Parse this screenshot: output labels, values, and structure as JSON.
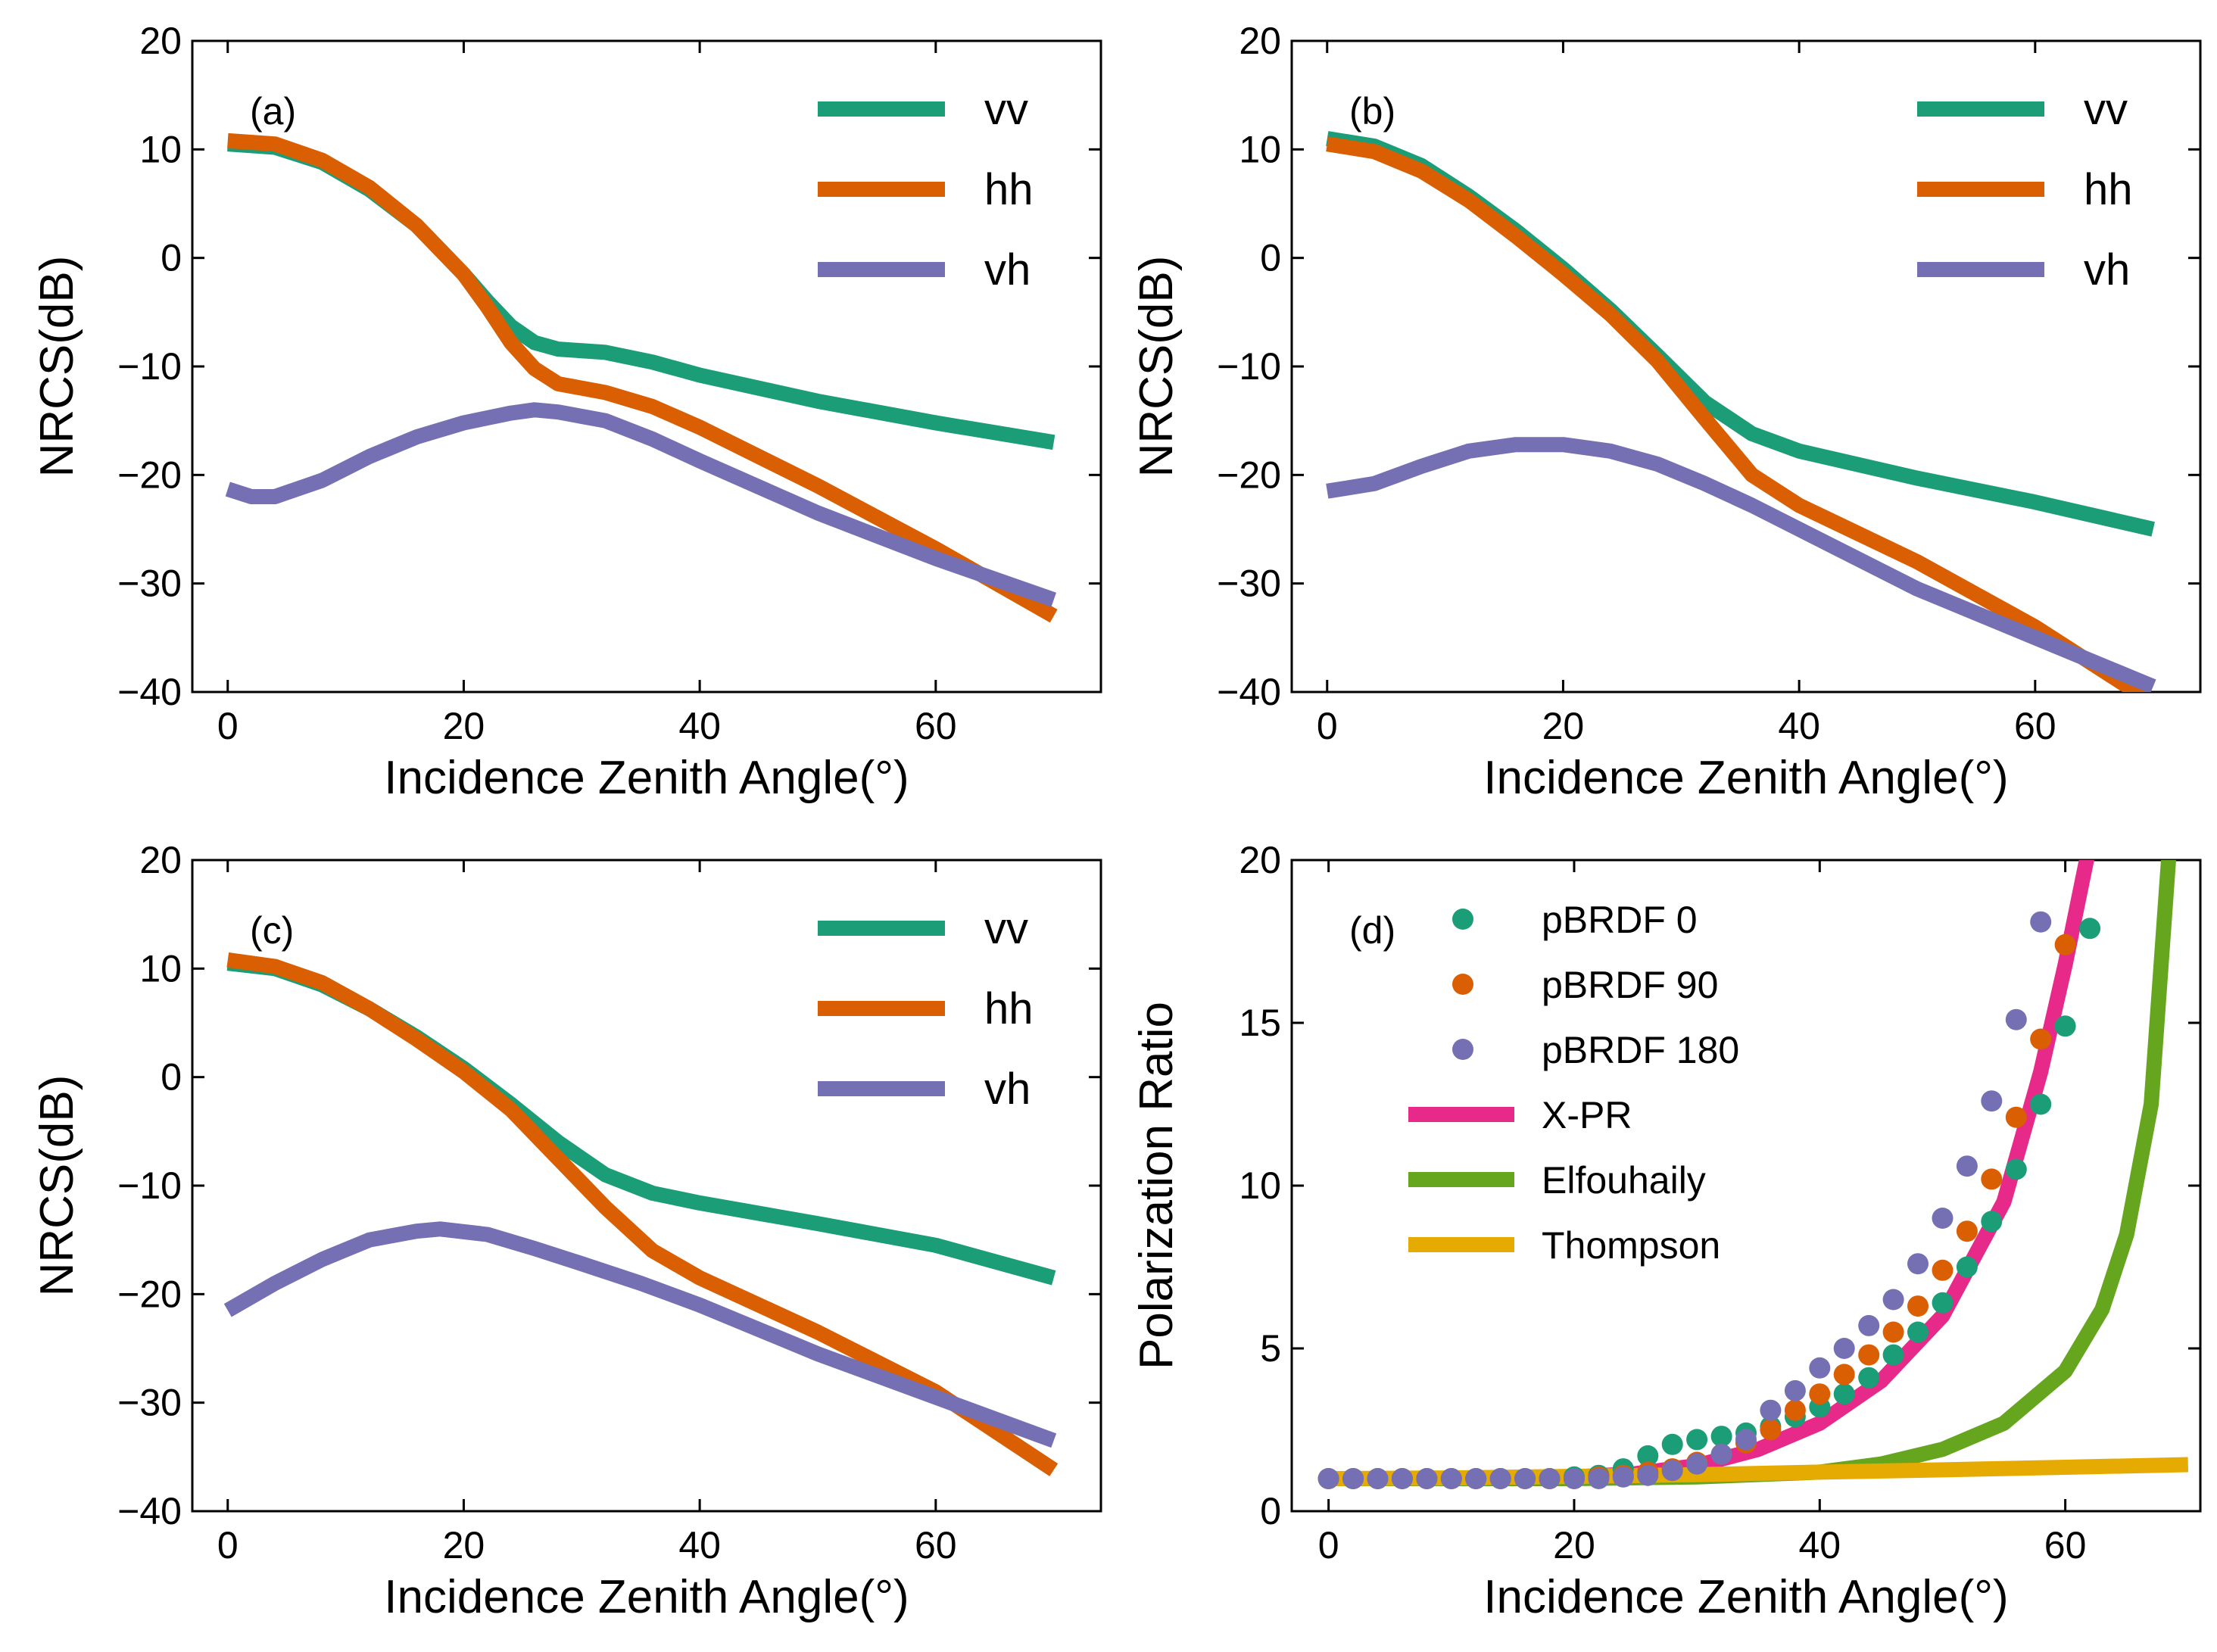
{
  "figure": {
    "colors": {
      "vv": "#1b9e77",
      "hh": "#d95f02",
      "vh": "#7570b3",
      "pbrdf0": "#1b9e77",
      "pbrdf90": "#d95f02",
      "pbrdf180": "#7570b3",
      "xpr": "#e7298a",
      "elfouhaily": "#66a61e",
      "thompson": "#e6ab02"
    }
  },
  "chart_data": [
    {
      "id": "a",
      "type": "line",
      "panel_label": "(a)",
      "xlabel": "Incidence Zenith Angle(°)",
      "ylabel": "NRCS(dB)",
      "xlim": [
        -3,
        74
      ],
      "ylim": [
        -40,
        20
      ],
      "xticks": [
        "0",
        "20",
        "40",
        "60"
      ],
      "xtick_values": [
        0,
        20,
        40,
        60
      ],
      "yticks": [
        "−40",
        "−30",
        "−20",
        "−10",
        "0",
        "10",
        "20"
      ],
      "ytick_values": [
        -40,
        -30,
        -20,
        -10,
        0,
        10,
        20
      ],
      "legend": {
        "position": "top-right",
        "entries": [
          "vv",
          "hh",
          "vh"
        ]
      },
      "series": [
        {
          "name": "vv",
          "color_key": "vv",
          "x": [
            0,
            4,
            8,
            12,
            16,
            20,
            22,
            24,
            26,
            28,
            32,
            36,
            40,
            50,
            60,
            70
          ],
          "values": [
            10.5,
            10.2,
            8.8,
            6.3,
            3.0,
            -1.5,
            -4.0,
            -6.3,
            -7.8,
            -8.4,
            -8.7,
            -9.6,
            -10.8,
            -13.2,
            -15.2,
            -17.0
          ]
        },
        {
          "name": "hh",
          "color_key": "hh",
          "x": [
            0,
            4,
            8,
            12,
            16,
            20,
            22,
            24,
            26,
            28,
            32,
            36,
            40,
            50,
            60,
            70
          ],
          "values": [
            10.8,
            10.5,
            9.0,
            6.5,
            3.0,
            -1.5,
            -4.5,
            -7.8,
            -10.2,
            -11.6,
            -12.4,
            -13.7,
            -15.6,
            -21.0,
            -26.8,
            -33.0
          ]
        },
        {
          "name": "vh",
          "color_key": "vh",
          "x": [
            0,
            2,
            4,
            8,
            12,
            16,
            20,
            24,
            26,
            28,
            32,
            36,
            40,
            50,
            60,
            70
          ],
          "values": [
            -21.3,
            -22.0,
            -22.0,
            -20.5,
            -18.3,
            -16.5,
            -15.2,
            -14.3,
            -14.0,
            -14.2,
            -15.0,
            -16.7,
            -18.7,
            -23.5,
            -27.7,
            -31.5
          ]
        }
      ]
    },
    {
      "id": "b",
      "type": "line",
      "panel_label": "(b)",
      "xlabel": "Incidence Zenith Angle(°)",
      "ylabel": "NRCS(dB)",
      "xlim": [
        -3,
        74
      ],
      "ylim": [
        -40,
        20
      ],
      "xticks": [
        "0",
        "20",
        "40",
        "60"
      ],
      "xtick_values": [
        0,
        20,
        40,
        60
      ],
      "yticks": [
        "−40",
        "−30",
        "−20",
        "−10",
        "0",
        "10",
        "20"
      ],
      "ytick_values": [
        -40,
        -30,
        -20,
        -10,
        0,
        10,
        20
      ],
      "legend": {
        "position": "top-right",
        "entries": [
          "vv",
          "hh",
          "vh"
        ]
      },
      "series": [
        {
          "name": "vv",
          "color_key": "vv",
          "x": [
            0,
            4,
            8,
            12,
            16,
            20,
            24,
            28,
            32,
            36,
            40,
            50,
            60,
            70
          ],
          "values": [
            11.0,
            10.3,
            8.5,
            5.7,
            2.5,
            -1.0,
            -4.8,
            -9.0,
            -13.3,
            -16.2,
            -17.8,
            -20.3,
            -22.5,
            -25.0
          ]
        },
        {
          "name": "hh",
          "color_key": "hh",
          "x": [
            0,
            4,
            8,
            12,
            16,
            20,
            24,
            28,
            32,
            36,
            40,
            50,
            60,
            70
          ],
          "values": [
            10.5,
            9.8,
            8.0,
            5.3,
            2.0,
            -1.5,
            -5.2,
            -9.5,
            -14.8,
            -20.0,
            -22.8,
            -28.0,
            -34.0,
            -41.0
          ]
        },
        {
          "name": "vh",
          "color_key": "vh",
          "x": [
            0,
            4,
            8,
            12,
            16,
            20,
            24,
            28,
            32,
            36,
            40,
            50,
            60,
            70
          ],
          "values": [
            -21.5,
            -20.8,
            -19.2,
            -17.8,
            -17.2,
            -17.2,
            -17.8,
            -19.0,
            -20.8,
            -22.8,
            -25.0,
            -30.5,
            -35.0,
            -39.5
          ]
        }
      ]
    },
    {
      "id": "c",
      "type": "line",
      "panel_label": "(c)",
      "xlabel": "Incidence Zenith Angle(°)",
      "ylabel": "NRCS(dB)",
      "xlim": [
        -3,
        74
      ],
      "ylim": [
        -40,
        20
      ],
      "xticks": [
        "0",
        "20",
        "40",
        "60"
      ],
      "xtick_values": [
        0,
        20,
        40,
        60
      ],
      "yticks": [
        "−40",
        "−30",
        "−20",
        "−10",
        "0",
        "10",
        "20"
      ],
      "ytick_values": [
        -40,
        -30,
        -20,
        -10,
        0,
        10,
        20
      ],
      "legend": {
        "position": "top-right",
        "entries": [
          "vv",
          "hh",
          "vh"
        ]
      },
      "series": [
        {
          "name": "vv",
          "color_key": "vv",
          "x": [
            0,
            4,
            8,
            12,
            16,
            20,
            24,
            28,
            32,
            36,
            40,
            50,
            60,
            70
          ],
          "values": [
            10.5,
            10.0,
            8.5,
            6.3,
            3.7,
            0.8,
            -2.5,
            -6.0,
            -9.0,
            -10.7,
            -11.6,
            -13.5,
            -15.5,
            -18.5
          ]
        },
        {
          "name": "hh",
          "color_key": "hh",
          "x": [
            0,
            4,
            8,
            12,
            16,
            20,
            24,
            28,
            32,
            36,
            40,
            50,
            60,
            70
          ],
          "values": [
            10.8,
            10.2,
            8.7,
            6.3,
            3.5,
            0.5,
            -3.0,
            -7.5,
            -12.0,
            -16.0,
            -18.5,
            -23.5,
            -29.0,
            -36.2
          ]
        },
        {
          "name": "vh",
          "color_key": "vh",
          "x": [
            0,
            4,
            8,
            12,
            16,
            18,
            22,
            26,
            30,
            35,
            40,
            50,
            60,
            70
          ],
          "values": [
            -21.5,
            -19.0,
            -16.8,
            -15.0,
            -14.2,
            -14.0,
            -14.5,
            -15.8,
            -17.2,
            -19.0,
            -21.0,
            -25.5,
            -29.5,
            -33.5
          ]
        }
      ]
    },
    {
      "id": "d",
      "type": "scatter+line",
      "panel_label": "(d)",
      "xlabel": "Incidence Zenith Angle(°)",
      "ylabel": "Polarization Ratio",
      "xlim": [
        -3,
        71
      ],
      "ylim": [
        0,
        20
      ],
      "xticks": [
        "0",
        "20",
        "40",
        "60"
      ],
      "xtick_values": [
        0,
        20,
        40,
        60
      ],
      "yticks": [
        "0",
        "5",
        "10",
        "15",
        "20"
      ],
      "ytick_values": [
        0,
        5,
        10,
        15,
        20
      ],
      "legend": {
        "position": "top-left",
        "entries": [
          "pBRDF 0",
          "pBRDF 90",
          "pBRDF 180",
          "X-PR",
          "Elfouhaily",
          "Thompson"
        ]
      },
      "scatter_series": [
        {
          "name": "pBRDF 0",
          "color_key": "pbrdf0",
          "x": [
            0,
            2,
            4,
            6,
            8,
            10,
            12,
            14,
            16,
            18,
            20,
            22,
            24,
            26,
            28,
            30,
            32,
            34,
            36,
            38,
            40,
            42,
            44,
            46,
            48,
            50,
            52,
            54,
            56,
            58,
            60,
            62
          ],
          "values": [
            1.0,
            1.0,
            1.0,
            1.0,
            1.0,
            1.0,
            1.0,
            1.0,
            1.0,
            1.0,
            1.05,
            1.1,
            1.3,
            1.7,
            2.05,
            2.2,
            2.3,
            2.4,
            2.6,
            2.9,
            3.2,
            3.6,
            4.1,
            4.8,
            5.5,
            6.4,
            7.5,
            8.9,
            10.5,
            12.5,
            14.9,
            17.9
          ]
        },
        {
          "name": "pBRDF 90",
          "color_key": "pbrdf90",
          "x": [
            0,
            2,
            4,
            6,
            8,
            10,
            12,
            14,
            16,
            18,
            20,
            22,
            24,
            26,
            28,
            30,
            32,
            34,
            36,
            38,
            40,
            42,
            44,
            46,
            48,
            50,
            52,
            54,
            56,
            58,
            60
          ],
          "values": [
            1.0,
            1.0,
            1.0,
            1.0,
            1.0,
            1.0,
            1.0,
            1.0,
            1.0,
            1.0,
            1.0,
            1.05,
            1.1,
            1.2,
            1.3,
            1.5,
            1.75,
            2.1,
            2.5,
            3.1,
            3.6,
            4.2,
            4.8,
            5.5,
            6.3,
            7.4,
            8.6,
            10.2,
            12.1,
            14.5,
            17.4
          ]
        },
        {
          "name": "pBRDF 180",
          "color_key": "pbrdf180",
          "x": [
            0,
            2,
            4,
            6,
            8,
            10,
            12,
            14,
            16,
            18,
            20,
            22,
            24,
            26,
            28,
            30,
            32,
            34,
            36,
            38,
            40,
            42,
            44,
            46,
            48,
            50,
            52,
            54,
            56,
            58
          ],
          "values": [
            1.0,
            1.0,
            1.0,
            1.0,
            1.0,
            1.0,
            1.0,
            1.0,
            1.0,
            1.0,
            1.0,
            1.0,
            1.05,
            1.1,
            1.25,
            1.45,
            1.75,
            2.2,
            3.1,
            3.7,
            4.4,
            5.0,
            5.7,
            6.5,
            7.6,
            9.0,
            10.6,
            12.6,
            15.1,
            18.1
          ]
        }
      ],
      "line_series": [
        {
          "name": "X-PR",
          "color_key": "xpr",
          "x": [
            0,
            10,
            20,
            25,
            30,
            35,
            40,
            45,
            50,
            55,
            58,
            60,
            62
          ],
          "values": [
            1.0,
            1.0,
            1.05,
            1.15,
            1.4,
            1.9,
            2.7,
            4.0,
            6.0,
            9.5,
            13.5,
            16.8,
            20.5
          ]
        },
        {
          "name": "Elfouhaily",
          "color_key": "elfouhaily",
          "x": [
            0,
            20,
            30,
            40,
            45,
            50,
            55,
            60,
            63,
            65,
            67,
            68.5
          ],
          "values": [
            1.0,
            1.0,
            1.05,
            1.2,
            1.45,
            1.9,
            2.7,
            4.3,
            6.2,
            8.5,
            12.5,
            20.5
          ]
        },
        {
          "name": "Thompson",
          "color_key": "thompson",
          "x": [
            0,
            10,
            20,
            30,
            40,
            50,
            60,
            70
          ],
          "values": [
            1.0,
            1.02,
            1.07,
            1.12,
            1.2,
            1.27,
            1.35,
            1.43
          ]
        }
      ]
    }
  ]
}
